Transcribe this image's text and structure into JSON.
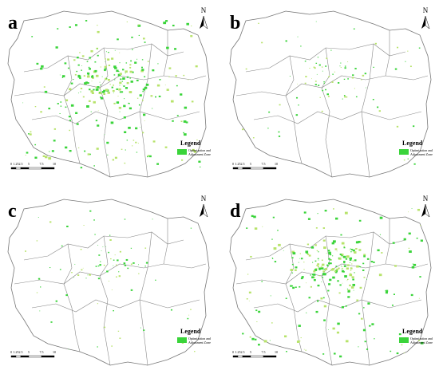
{
  "panels": [
    {
      "label": "a",
      "north": "N",
      "legend_title": "Legend",
      "legend_item": [
        "Optimization and",
        "Adjustment Zone"
      ],
      "scale_labels": [
        "0",
        "1.25",
        "2.5",
        "5",
        "7.5",
        "10"
      ]
    },
    {
      "label": "b",
      "north": "N",
      "legend_title": "Legend",
      "legend_item": [
        "Optimization and",
        "Adjustment Zone"
      ],
      "scale_labels": [
        "0",
        "1.25",
        "2.5",
        "5",
        "7.5",
        "10"
      ]
    },
    {
      "label": "c",
      "north": "N",
      "legend_title": "Legend",
      "legend_item": [
        "Optimization and",
        "Adjustment Zone"
      ],
      "scale_labels": [
        "0",
        "1.25",
        "2.5",
        "5",
        "7.5",
        "10"
      ]
    },
    {
      "label": "d",
      "north": "N",
      "legend_title": "Legend",
      "legend_item": [
        "Optimization and",
        "Adjustment Zone"
      ],
      "scale_labels": [
        "0",
        "1.25",
        "2.5",
        "5",
        "7.5",
        "10"
      ]
    }
  ]
}
